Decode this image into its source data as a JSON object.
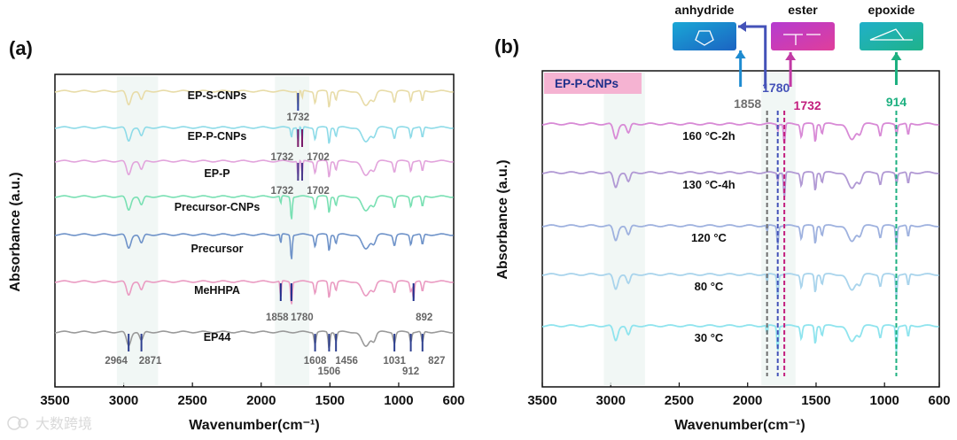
{
  "chart_data": [
    {
      "panel": "(a)",
      "type": "line",
      "xlabel": "Wavenumber(cm⁻¹)",
      "ylabel": "Absorbance (a.u.)",
      "xlim": [
        3500,
        600
      ],
      "xticks": [
        3500,
        3000,
        2500,
        2000,
        1500,
        1000,
        600
      ],
      "series": [
        {
          "name": "EP-S-CNPs",
          "color": "#e8dca8",
          "offset": 0
        },
        {
          "name": "EP-P-CNPs",
          "color": "#8edbe8",
          "offset": 1
        },
        {
          "name": "EP-P",
          "color": "#e2a4dc",
          "offset": 2
        },
        {
          "name": "Precursor-CNPs",
          "color": "#79e0b3",
          "offset": 3
        },
        {
          "name": "Precursor",
          "color": "#6f93c9",
          "offset": 4
        },
        {
          "name": "MeHHPA",
          "color": "#ea9bc2",
          "offset": 5
        },
        {
          "name": "EP44",
          "color": "#9a9a9a",
          "offset": 6
        }
      ],
      "peak_labels": [
        {
          "text": "1732",
          "x": 1732,
          "row": 0
        },
        {
          "text": "1732",
          "x": 1732,
          "row": 1
        },
        {
          "text": "1702",
          "x": 1702,
          "row": 1
        },
        {
          "text": "1732",
          "x": 1732,
          "row": 2
        },
        {
          "text": "1702",
          "x": 1702,
          "row": 2
        },
        {
          "text": "1858",
          "x": 1858,
          "row": 5
        },
        {
          "text": "1780",
          "x": 1780,
          "row": 5
        },
        {
          "text": "892",
          "x": 892,
          "row": 5
        },
        {
          "text": "2964",
          "x": 2964,
          "row": 6
        },
        {
          "text": "2871",
          "x": 2871,
          "row": 6
        },
        {
          "text": "1608",
          "x": 1608,
          "row": 6
        },
        {
          "text": "1506",
          "x": 1506,
          "row": 6
        },
        {
          "text": "1456",
          "x": 1456,
          "row": 6
        },
        {
          "text": "1031",
          "x": 1031,
          "row": 6
        },
        {
          "text": "912",
          "x": 912,
          "row": 6
        },
        {
          "text": "827",
          "x": 827,
          "row": 6
        }
      ]
    },
    {
      "panel": "(b)",
      "type": "line",
      "title": "EP-P-CNPs",
      "xlabel": "Wavenumber(cm⁻¹)",
      "ylabel": "Absorbance (a.u.)",
      "xlim": [
        3500,
        600
      ],
      "xticks": [
        3500,
        3000,
        2500,
        2000,
        1500,
        1000,
        600
      ],
      "series": [
        {
          "name": "160 °C-2h",
          "color": "#d88ad6"
        },
        {
          "name": "130 °C-4h",
          "color": "#b199d4"
        },
        {
          "name": "120 °C",
          "color": "#9fb2df"
        },
        {
          "name": "80 °C",
          "color": "#a9d4ec"
        },
        {
          "name": "30 °C",
          "color": "#8fe4ee"
        }
      ],
      "markers": [
        {
          "text": "1858",
          "x": 1858,
          "color": "#6f6f6f"
        },
        {
          "text": "1780",
          "x": 1780,
          "color": "#4452b8"
        },
        {
          "text": "1732",
          "x": 1732,
          "color": "#c21e7e"
        },
        {
          "text": "914",
          "x": 914,
          "color": "#1db080"
        }
      ],
      "groups": [
        {
          "label": "anhydride",
          "color": "#1e8bd0"
        },
        {
          "label": "ester",
          "color": "#c23aa5"
        },
        {
          "label": "epoxide",
          "color": "#1ba89a"
        }
      ]
    }
  ],
  "watermark": "大数跨境"
}
